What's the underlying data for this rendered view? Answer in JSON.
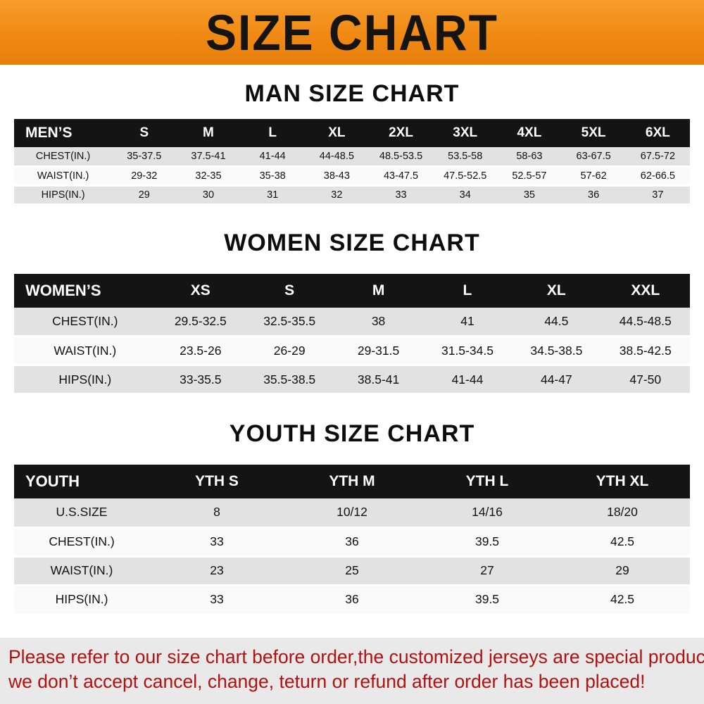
{
  "banner": {
    "title": "SIZE CHART",
    "bg_color": "#f08a14",
    "text_color": "#161410"
  },
  "colors": {
    "table_header_bg": "#141414",
    "table_header_text": "#ffffff",
    "row_alt_bg": "#e2e2e2",
    "note_text": "#b01111",
    "note_bg": "#e9e9e9"
  },
  "tables": {
    "men": {
      "heading": "MAN SIZE CHART",
      "header": [
        "MEN’S",
        "S",
        "M",
        "L",
        "XL",
        "2XL",
        "3XL",
        "4XL",
        "5XL",
        "6XL"
      ],
      "rows": [
        [
          "CHEST(IN.)",
          "35-37.5",
          "37.5-41",
          "41-44",
          "44-48.5",
          "48.5-53.5",
          "53.5-58",
          "58-63",
          "63-67.5",
          "67.5-72"
        ],
        [
          "WAIST(IN.)",
          "29-32",
          "32-35",
          "35-38",
          "38-43",
          "43-47.5",
          "47.5-52.5",
          "52.5-57",
          "57-62",
          "62-66.5"
        ],
        [
          "HIPS(IN.)",
          "29",
          "30",
          "31",
          "32",
          "33",
          "34",
          "35",
          "36",
          "37"
        ]
      ]
    },
    "women": {
      "heading": "WOMEN SIZE CHART",
      "header": [
        "WOMEN’S",
        "XS",
        "S",
        "M",
        "L",
        "XL",
        "XXL"
      ],
      "rows": [
        [
          "CHEST(IN.)",
          "29.5-32.5",
          "32.5-35.5",
          "38",
          "41",
          "44.5",
          "44.5-48.5"
        ],
        [
          "WAIST(IN.)",
          "23.5-26",
          "26-29",
          "29-31.5",
          "31.5-34.5",
          "34.5-38.5",
          "38.5-42.5"
        ],
        [
          "HIPS(IN.)",
          "33-35.5",
          "35.5-38.5",
          "38.5-41",
          "41-44",
          "44-47",
          "47-50"
        ]
      ]
    },
    "youth": {
      "heading": "YOUTH SIZE CHART",
      "header": [
        "YOUTH",
        "YTH S",
        "YTH M",
        "YTH L",
        "YTH XL"
      ],
      "rows": [
        [
          "U.S.SIZE",
          "8",
          "10/12",
          "14/16",
          "18/20"
        ],
        [
          "CHEST(IN.)",
          "33",
          "36",
          "39.5",
          "42.5"
        ],
        [
          "WAIST(IN.)",
          "23",
          "25",
          "27",
          "29"
        ],
        [
          "HIPS(IN.)",
          "33",
          "36",
          "39.5",
          "42.5"
        ]
      ]
    }
  },
  "note": {
    "line1": "Please refer to our size chart before order,the customized jerseys are special products,",
    "line2": "we don’t accept cancel, change, teturn or refund after order has been placed!"
  }
}
